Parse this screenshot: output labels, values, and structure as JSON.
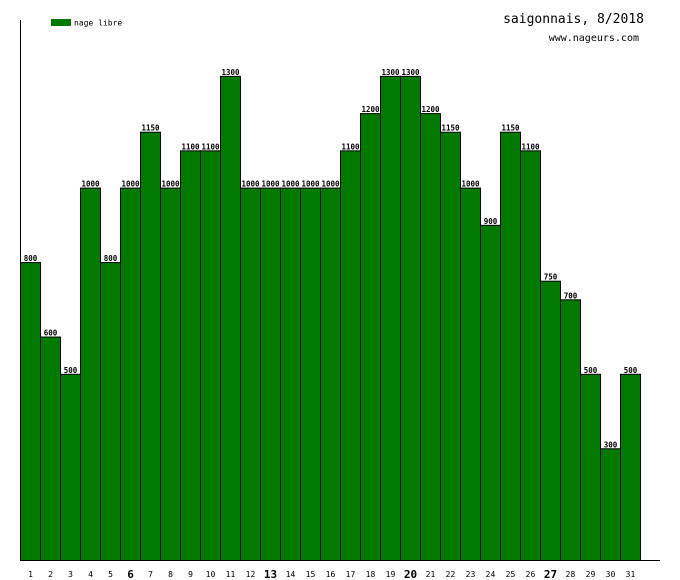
{
  "header": {
    "title": "saigonnais, 8/2018",
    "website": "www.nageurs.com"
  },
  "colors": {
    "bar": "#007a00",
    "bar_stroke": "#000000",
    "axis": "#000000",
    "text": "#000000"
  },
  "chart_data": {
    "type": "bar",
    "legend": {
      "position": "top-left",
      "entries": [
        "nage libre"
      ]
    },
    "categories": [
      "1",
      "2",
      "3",
      "4",
      "5",
      "6",
      "7",
      "8",
      "9",
      "10",
      "11",
      "12",
      "13",
      "14",
      "15",
      "16",
      "17",
      "18",
      "19",
      "20",
      "21",
      "22",
      "23",
      "24",
      "25",
      "26",
      "27",
      "28",
      "29",
      "30",
      "31"
    ],
    "bold_categories": [
      "6",
      "13",
      "20",
      "27"
    ],
    "series": [
      {
        "name": "nage libre",
        "values": [
          800,
          600,
          500,
          1000,
          800,
          1000,
          1150,
          1000,
          1100,
          1100,
          1300,
          1000,
          1000,
          1000,
          1000,
          1000,
          1100,
          1200,
          1300,
          1300,
          1200,
          1150,
          1000,
          900,
          1150,
          1100,
          750,
          700,
          500,
          300,
          500
        ],
        "labels": [
          "800",
          "600",
          "500",
          "1000",
          "800",
          "1000",
          "1150",
          "1000",
          "1100",
          "1100",
          "1300",
          "1000",
          "1000",
          "1000",
          "1000",
          "1000",
          "1100",
          "1200",
          "1300",
          "1300",
          "1200",
          "1150",
          "1000",
          "900",
          "1150",
          "1100",
          "750",
          "700",
          "500",
          "300",
          "500"
        ]
      }
    ],
    "ylim": [
      0,
      1450
    ],
    "grid": false
  }
}
